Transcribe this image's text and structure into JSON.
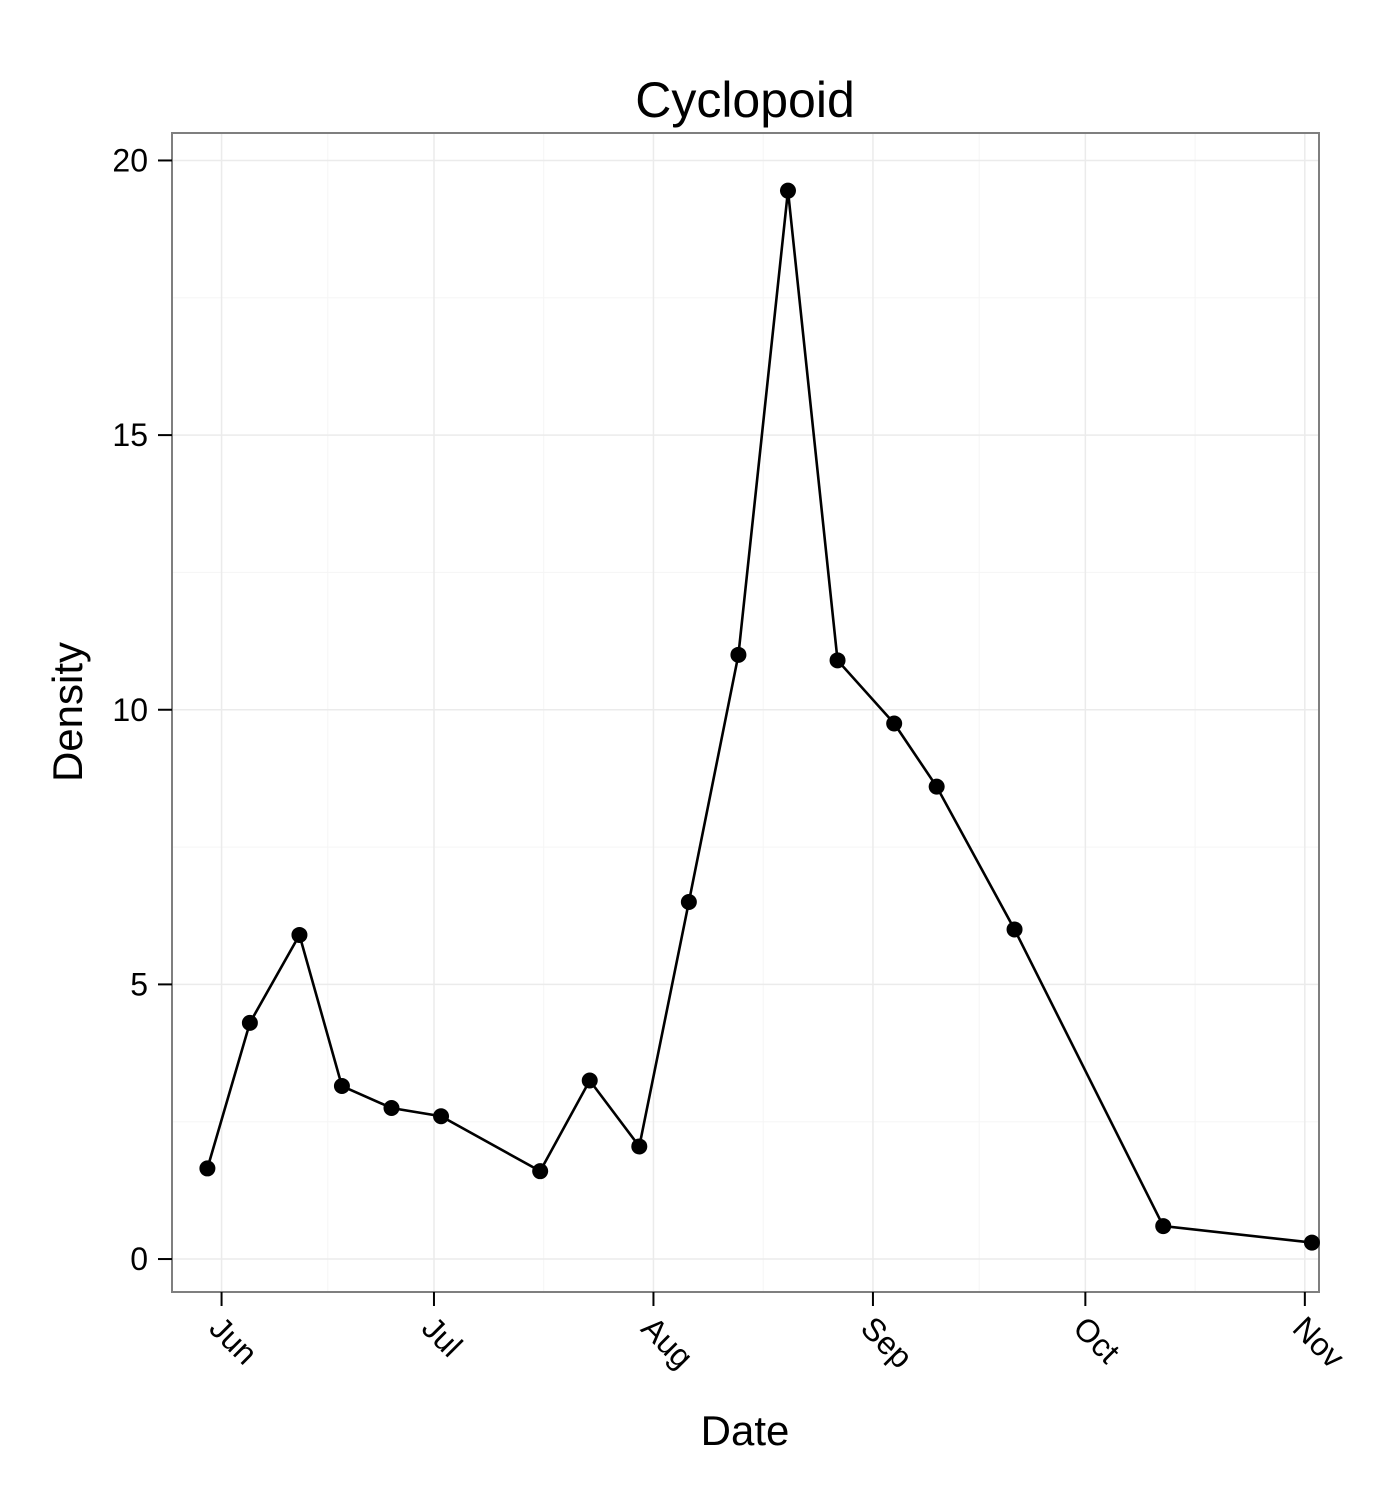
{
  "chart_data": {
    "type": "line",
    "title": "Cyclopoid",
    "xlabel": "Date",
    "ylabel": "Density",
    "x_ticks": [
      "Jun",
      "Jul",
      "Aug",
      "Sep",
      "Oct",
      "Nov"
    ],
    "y_ticks": [
      "0",
      "5",
      "10",
      "15",
      "20"
    ],
    "ylim": [
      -0.6,
      20.5
    ],
    "xlim": [
      "2012-05-25",
      "2012-11-03"
    ],
    "grid": true,
    "colors": {
      "line": "#000000",
      "point": "#000000",
      "frame": "#7f7f7f",
      "grid": "#ebebeb"
    },
    "series": [
      {
        "x": [
          "2012-05-30",
          "2012-06-05",
          "2012-06-12",
          "2012-06-18",
          "2012-06-25",
          "2012-07-02",
          "2012-07-16",
          "2012-07-23",
          "2012-07-30",
          "2012-08-06",
          "2012-08-13",
          "2012-08-20",
          "2012-08-27",
          "2012-09-04",
          "2012-09-10",
          "2012-09-21",
          "2012-10-12",
          "2012-11-02"
        ],
        "y": [
          1.65,
          4.3,
          5.9,
          3.15,
          2.75,
          2.6,
          1.6,
          3.25,
          2.05,
          6.5,
          11.0,
          19.45,
          10.9,
          9.75,
          8.6,
          6.0,
          0.6,
          0.3
        ]
      }
    ]
  }
}
